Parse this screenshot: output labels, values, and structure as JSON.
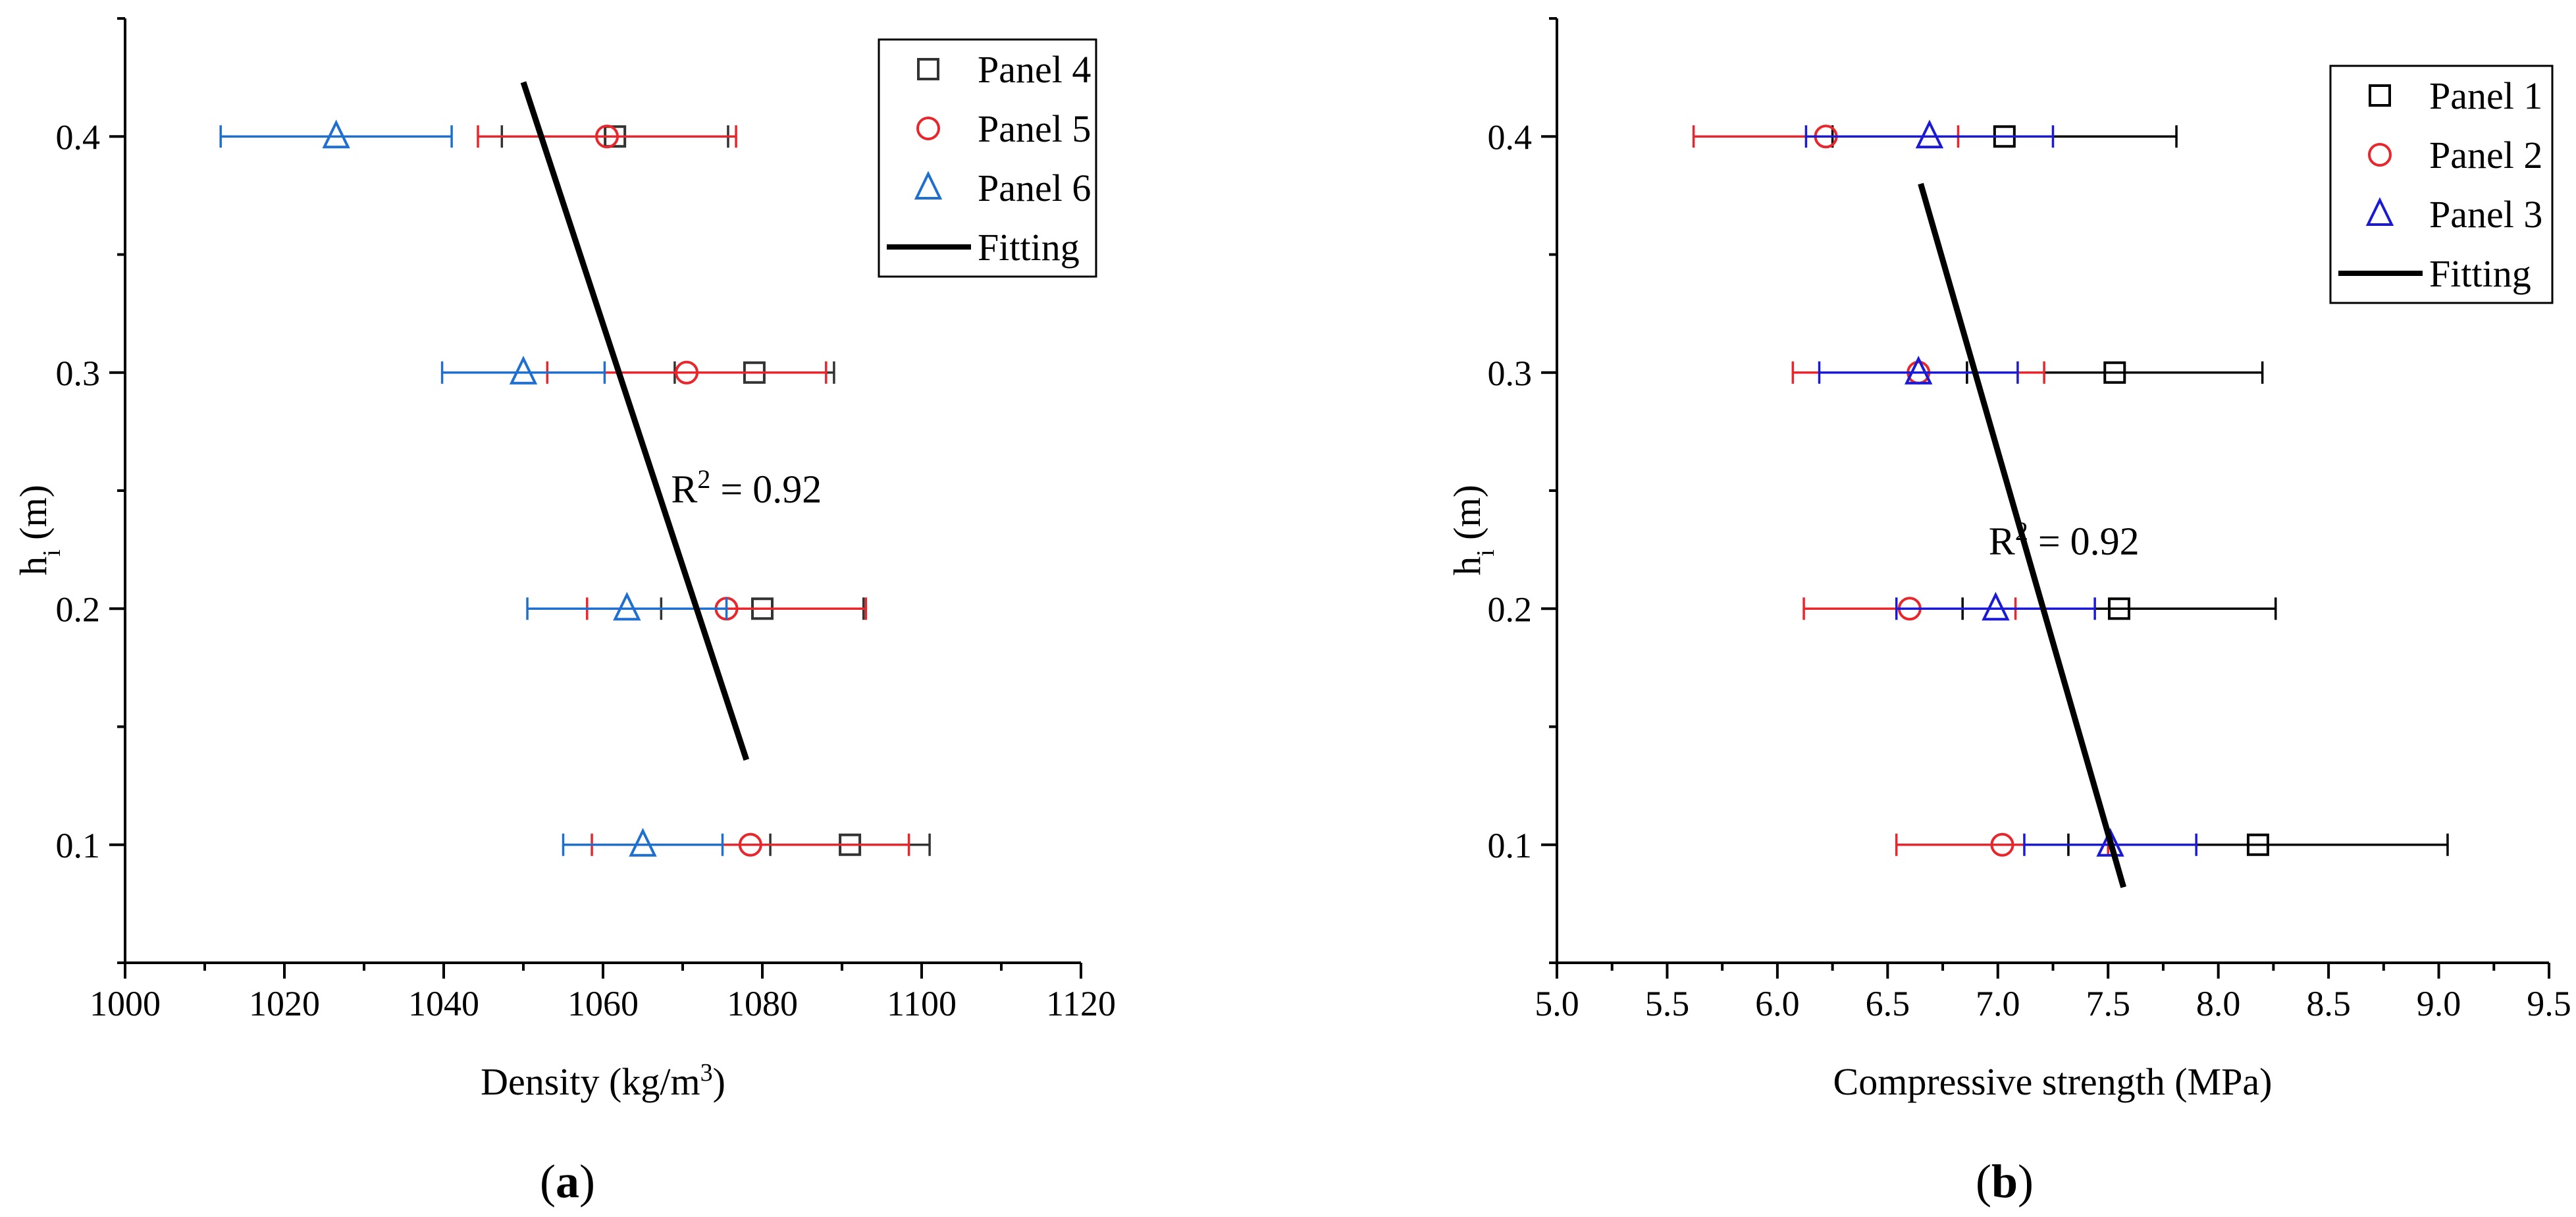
{
  "panel_labels": {
    "a": {
      "open": "(",
      "letter": "a",
      "close": ")"
    },
    "b": {
      "open": "(",
      "letter": "b",
      "close": ")"
    }
  },
  "chart_data": [
    {
      "type": "scatter",
      "id": "a",
      "title": "",
      "xlabel": {
        "main": "Density (kg/m",
        "sup": "3",
        "close": ")"
      },
      "ylabel": {
        "main": "h",
        "sub": "i",
        "rest": " (m)"
      },
      "xlim": [
        1000,
        1120
      ],
      "ylim": [
        0.05,
        0.45
      ],
      "x_ticks": [
        1000,
        1020,
        1040,
        1060,
        1080,
        1100,
        1120
      ],
      "x_tick_labels": [
        "1000",
        "1020",
        "1040",
        "1060",
        "1080",
        "1100",
        "1120"
      ],
      "x_minor_step": 10,
      "y_ticks": [
        0.1,
        0.2,
        0.3,
        0.4
      ],
      "y_tick_labels": [
        "0.1",
        "0.2",
        "0.3",
        "0.4"
      ],
      "y_minor_step": 0.05,
      "legend_position": "top-right",
      "annotation": {
        "main": "R",
        "sup": "2",
        "rest": " = 0.92",
        "x": 1078,
        "y": 0.245
      },
      "series": [
        {
          "name": "Panel 4",
          "marker": "square",
          "color": "#333333",
          "points": [
            {
              "y": 0.1,
              "x": 1091.0,
              "xerr": 10.0
            },
            {
              "y": 0.2,
              "x": 1080.0,
              "xerr": 12.7
            },
            {
              "y": 0.3,
              "x": 1079.0,
              "xerr": 10.0
            },
            {
              "y": 0.4,
              "x": 1061.5,
              "xerr": 14.2
            }
          ]
        },
        {
          "name": "Panel 5",
          "marker": "circle",
          "color": "#e8262b",
          "points": [
            {
              "y": 0.1,
              "x": 1078.5,
              "xerr": 19.9
            },
            {
              "y": 0.2,
              "x": 1075.5,
              "xerr": 17.5
            },
            {
              "y": 0.3,
              "x": 1070.5,
              "xerr": 17.5
            },
            {
              "y": 0.4,
              "x": 1060.5,
              "xerr": 16.2
            }
          ]
        },
        {
          "name": "Panel 6",
          "marker": "triangle",
          "color": "#1f6fd0",
          "points": [
            {
              "y": 0.1,
              "x": 1065.0,
              "xerr": 10.0
            },
            {
              "y": 0.2,
              "x": 1063.0,
              "xerr": 12.5
            },
            {
              "y": 0.3,
              "x": 1050.0,
              "xerr": 10.2
            },
            {
              "y": 0.4,
              "x": 1026.5,
              "xerr": 14.5
            }
          ]
        }
      ],
      "fitting": {
        "name": "Fitting",
        "color": "#000000",
        "points": [
          {
            "x": 1050.0,
            "y": 0.423
          },
          {
            "x": 1078.0,
            "y": 0.136
          }
        ]
      }
    },
    {
      "type": "scatter",
      "id": "b",
      "title": "",
      "xlabel": {
        "main": "Compressive strength (MPa)",
        "sup": "",
        "close": ""
      },
      "ylabel": {
        "main": "h",
        "sub": "i",
        "rest": " (m)"
      },
      "xlim": [
        5.0,
        9.5
      ],
      "ylim": [
        0.05,
        0.45
      ],
      "x_ticks": [
        5.0,
        5.5,
        6.0,
        6.5,
        7.0,
        7.5,
        8.0,
        8.5,
        9.0,
        9.5
      ],
      "x_tick_labels": [
        "5.0",
        "5.5",
        "6.0",
        "6.5",
        "7.0",
        "7.5",
        "8.0",
        "8.5",
        "9.0",
        "9.5"
      ],
      "x_minor_step": 0.25,
      "y_ticks": [
        0.1,
        0.2,
        0.3,
        0.4
      ],
      "y_tick_labels": [
        "0.1",
        "0.2",
        "0.3",
        "0.4"
      ],
      "y_minor_step": 0.05,
      "legend_position": "top-right",
      "annotation": {
        "main": "R",
        "sup": "2",
        "rest": " = 0.92",
        "x": 7.3,
        "y": 0.223
      },
      "series": [
        {
          "name": "Panel 1",
          "marker": "square",
          "color": "#000000",
          "points": [
            {
              "y": 0.1,
              "x": 8.18,
              "xerr": 0.86
            },
            {
              "y": 0.2,
              "x": 7.55,
              "xerr": 0.71
            },
            {
              "y": 0.3,
              "x": 7.53,
              "xerr": 0.67
            },
            {
              "y": 0.4,
              "x": 7.03,
              "xerr": 0.78
            }
          ]
        },
        {
          "name": "Panel 2",
          "marker": "circle",
          "color": "#e8262b",
          "points": [
            {
              "y": 0.1,
              "x": 7.02,
              "xerr": 0.48
            },
            {
              "y": 0.2,
              "x": 6.6,
              "xerr": 0.48
            },
            {
              "y": 0.3,
              "x": 6.64,
              "xerr": 0.57
            },
            {
              "y": 0.4,
              "x": 6.22,
              "xerr": 0.6
            }
          ]
        },
        {
          "name": "Panel 3",
          "marker": "triangle",
          "color": "#1a1ad6",
          "points": [
            {
              "y": 0.1,
              "x": 7.51,
              "xerr": 0.39
            },
            {
              "y": 0.2,
              "x": 6.99,
              "xerr": 0.45
            },
            {
              "y": 0.3,
              "x": 6.64,
              "xerr": 0.45
            },
            {
              "y": 0.4,
              "x": 6.69,
              "xerr": 0.56
            }
          ]
        }
      ],
      "fitting": {
        "name": "Fitting",
        "color": "#000000",
        "points": [
          {
            "x": 6.65,
            "y": 0.38
          },
          {
            "x": 7.57,
            "y": 0.082
          }
        ]
      }
    }
  ]
}
